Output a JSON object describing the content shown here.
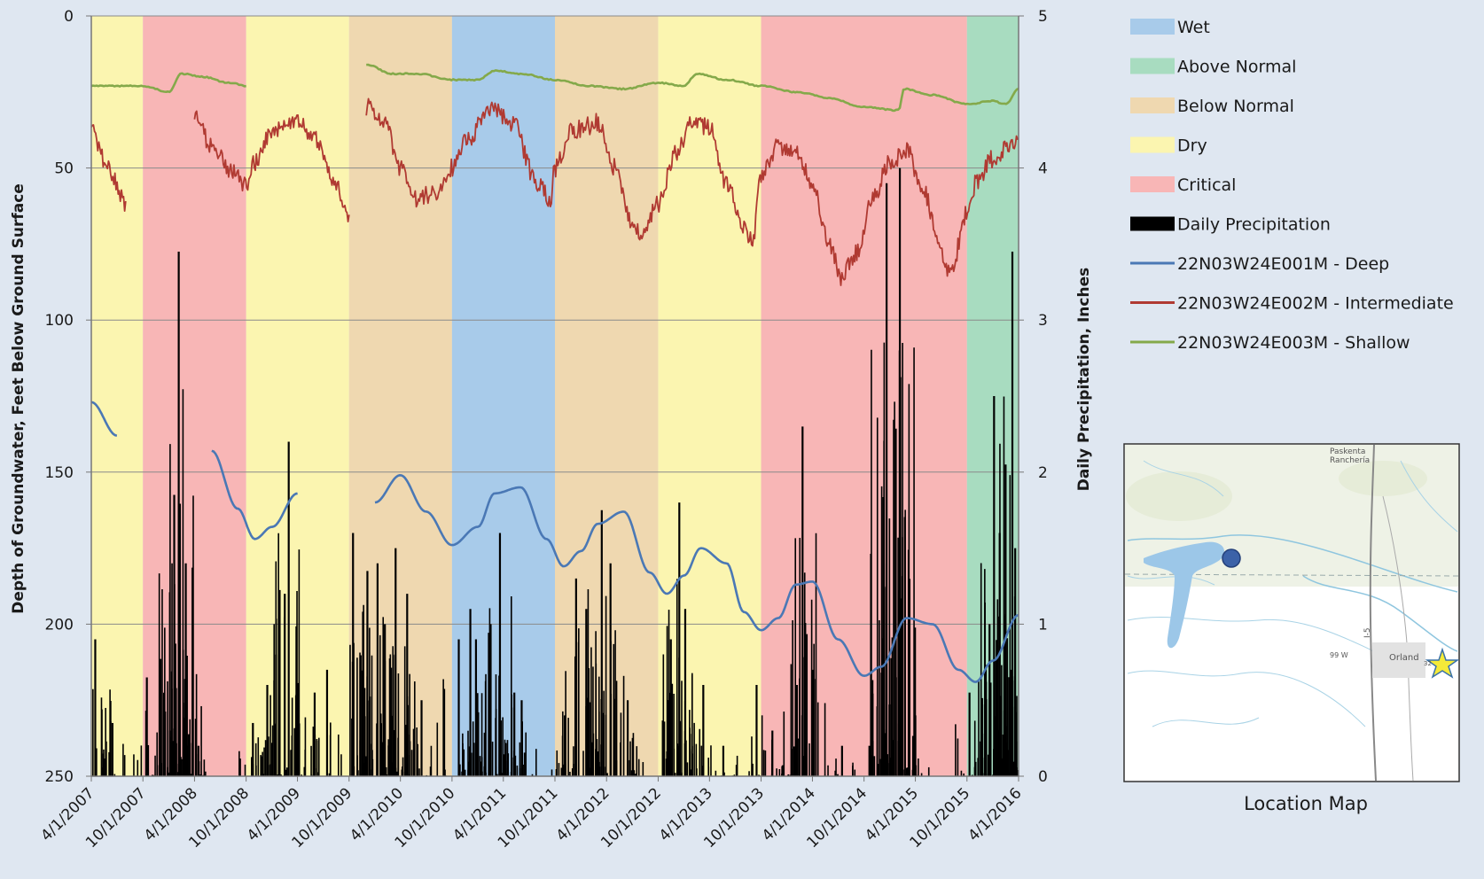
{
  "chart_data": {
    "type": "line",
    "x_axis": {
      "type": "date",
      "range": [
        "2007-04-01",
        "2016-04-01"
      ],
      "tick_labels": [
        "4/1/2007",
        "10/1/2007",
        "4/1/2008",
        "10/1/2008",
        "4/1/2009",
        "10/1/2009",
        "4/1/2010",
        "10/1/2010",
        "4/1/2011",
        "10/1/2011",
        "4/1/2012",
        "10/1/2012",
        "4/1/2013",
        "10/1/2013",
        "4/1/2014",
        "10/1/2014",
        "4/1/2015",
        "10/1/2015",
        "4/1/2016"
      ],
      "tick_dates": [
        "2007-04-01",
        "2007-10-01",
        "2008-04-01",
        "2008-10-01",
        "2009-04-01",
        "2009-10-01",
        "2010-04-01",
        "2010-10-01",
        "2011-04-01",
        "2011-10-01",
        "2012-04-01",
        "2012-10-01",
        "2013-04-01",
        "2013-10-01",
        "2014-04-01",
        "2014-10-01",
        "2015-04-01",
        "2015-10-01",
        "2016-04-01"
      ]
    },
    "y_axis_left": {
      "label": "Depth of Groundwater, Feet Below Ground Surface",
      "range": [
        0,
        250
      ],
      "inverted": true,
      "ticks": [
        0,
        50,
        100,
        150,
        200,
        250
      ],
      "gridlines": true
    },
    "y_axis_right": {
      "label": "Daily Precipitation, Inches",
      "range": [
        0,
        5
      ],
      "ticks": [
        0,
        1,
        2,
        3,
        4,
        5
      ]
    },
    "water_year_types": [
      {
        "start": "2007-04-01",
        "end": "2007-10-01",
        "type": "Dry"
      },
      {
        "start": "2007-10-01",
        "end": "2008-10-01",
        "type": "Critical"
      },
      {
        "start": "2008-10-01",
        "end": "2009-10-01",
        "type": "Dry"
      },
      {
        "start": "2009-10-01",
        "end": "2010-10-01",
        "type": "Below Normal"
      },
      {
        "start": "2010-10-01",
        "end": "2011-10-01",
        "type": "Wet"
      },
      {
        "start": "2011-10-01",
        "end": "2012-10-01",
        "type": "Below Normal"
      },
      {
        "start": "2012-10-01",
        "end": "2013-10-01",
        "type": "Dry"
      },
      {
        "start": "2013-10-01",
        "end": "2015-10-01",
        "type": "Critical"
      },
      {
        "start": "2015-10-01",
        "end": "2016-04-01",
        "type": "Above Normal"
      }
    ],
    "legend": {
      "placement": "right",
      "entries": [
        {
          "label": "Wet",
          "kind": "band",
          "color": "#a8cbea"
        },
        {
          "label": "Above Normal",
          "kind": "band",
          "color": "#a8dcc0"
        },
        {
          "label": "Below Normal",
          "kind": "band",
          "color": "#efd8b0"
        },
        {
          "label": "Dry",
          "kind": "band",
          "color": "#fbf5b0"
        },
        {
          "label": "Critical",
          "kind": "band",
          "color": "#f8b6b6"
        },
        {
          "label": "Daily Precipitation",
          "kind": "bar",
          "color": "#000000"
        },
        {
          "label": "22N03W24E001M - Deep",
          "kind": "line",
          "color": "#4a78b5"
        },
        {
          "label": "22N03W24E002M - Intermediate",
          "kind": "line",
          "color": "#b03a32"
        },
        {
          "label": "22N03W24E003M - Shallow",
          "kind": "line",
          "color": "#84a94a"
        }
      ]
    },
    "series": [
      {
        "name": "22N03W24E003M - Shallow",
        "axis": "left",
        "color": "#84a94a",
        "segments": [
          [
            [
              "2007-04-01",
              23
            ],
            [
              "2007-07-01",
              23
            ],
            [
              "2007-10-01",
              23
            ],
            [
              "2008-01-01",
              25
            ],
            [
              "2008-02-15",
              19
            ],
            [
              "2008-05-01",
              20
            ],
            [
              "2008-08-01",
              22
            ],
            [
              "2008-10-01",
              23
            ]
          ],
          [
            [
              "2009-12-01",
              16
            ],
            [
              "2010-03-01",
              19
            ],
            [
              "2010-06-01",
              19
            ],
            [
              "2010-10-01",
              21
            ],
            [
              "2011-01-01",
              21
            ],
            [
              "2011-03-01",
              18
            ],
            [
              "2011-06-01",
              19
            ],
            [
              "2011-10-01",
              21
            ],
            [
              "2012-02-01",
              23
            ],
            [
              "2012-06-01",
              24
            ],
            [
              "2012-10-01",
              22
            ],
            [
              "2013-01-01",
              23
            ],
            [
              "2013-02-15",
              19
            ],
            [
              "2013-06-01",
              21
            ],
            [
              "2013-10-01",
              23
            ],
            [
              "2014-02-01",
              25
            ],
            [
              "2014-06-01",
              27
            ],
            [
              "2014-10-01",
              30
            ],
            [
              "2015-02-01",
              31
            ],
            [
              "2015-02-20",
              24
            ],
            [
              "2015-06-01",
              26
            ],
            [
              "2015-10-01",
              29
            ],
            [
              "2016-01-01",
              28
            ],
            [
              "2016-02-15",
              29
            ],
            [
              "2016-04-01",
              24
            ]
          ]
        ]
      },
      {
        "name": "22N03W24E002M - Intermediate",
        "axis": "left",
        "color": "#b03a32",
        "segments": [
          [
            [
              "2007-04-01",
              38
            ],
            [
              "2007-06-01",
              50
            ],
            [
              "2007-07-15",
              58
            ],
            [
              "2007-08-01",
              62
            ]
          ],
          [
            [
              "2008-04-01",
              33
            ],
            [
              "2008-06-01",
              43
            ],
            [
              "2008-08-01",
              50
            ],
            [
              "2008-10-01",
              55
            ],
            [
              "2008-11-01",
              48
            ],
            [
              "2009-01-01",
              38
            ],
            [
              "2009-04-01",
              34
            ],
            [
              "2009-06-01",
              40
            ],
            [
              "2009-08-01",
              53
            ],
            [
              "2009-10-01",
              65
            ]
          ],
          [
            [
              "2009-12-01",
              30
            ],
            [
              "2010-02-01",
              35
            ],
            [
              "2010-04-01",
              50
            ],
            [
              "2010-06-01",
              60
            ],
            [
              "2010-08-01",
              58
            ],
            [
              "2010-10-01",
              50
            ],
            [
              "2010-12-01",
              40
            ],
            [
              "2011-02-01",
              32
            ],
            [
              "2011-03-01",
              31
            ],
            [
              "2011-05-01",
              35
            ],
            [
              "2011-08-01",
              55
            ],
            [
              "2011-09-15",
              60
            ],
            [
              "2011-10-01",
              50
            ],
            [
              "2011-12-01",
              38
            ],
            [
              "2012-02-01",
              36
            ],
            [
              "2012-03-01",
              35
            ],
            [
              "2012-05-01",
              50
            ],
            [
              "2012-07-01",
              68
            ],
            [
              "2012-08-01",
              72
            ],
            [
              "2012-10-01",
              62
            ],
            [
              "2012-12-01",
              45
            ],
            [
              "2013-02-01",
              34
            ],
            [
              "2013-04-01",
              37
            ],
            [
              "2013-06-01",
              55
            ],
            [
              "2013-08-01",
              70
            ],
            [
              "2013-09-01",
              74
            ],
            [
              "2013-10-01",
              52
            ],
            [
              "2013-12-01",
              43
            ],
            [
              "2014-02-01",
              45
            ],
            [
              "2014-04-01",
              55
            ],
            [
              "2014-06-01",
              75
            ],
            [
              "2014-07-15",
              86
            ],
            [
              "2014-09-01",
              78
            ],
            [
              "2014-11-01",
              60
            ],
            [
              "2015-01-01",
              48
            ],
            [
              "2015-03-01",
              44
            ],
            [
              "2015-05-01",
              58
            ],
            [
              "2015-07-01",
              78
            ],
            [
              "2015-08-01",
              85
            ],
            [
              "2015-10-01",
              65
            ],
            [
              "2015-11-01",
              55
            ],
            [
              "2016-01-01",
              47
            ],
            [
              "2016-03-01",
              42
            ],
            [
              "2016-04-01",
              40
            ]
          ]
        ]
      },
      {
        "name": "22N03W24E001M - Deep",
        "axis": "left",
        "color": "#4a78b5",
        "segments": [
          [
            [
              "2007-04-01",
              127
            ],
            [
              "2007-07-01",
              138
            ]
          ],
          [
            [
              "2008-06-01",
              143
            ],
            [
              "2008-09-01",
              162
            ],
            [
              "2008-11-01",
              172
            ],
            [
              "2009-01-01",
              168
            ],
            [
              "2009-04-01",
              157
            ]
          ],
          [
            [
              "2010-01-01",
              160
            ],
            [
              "2010-04-01",
              151
            ],
            [
              "2010-07-01",
              163
            ],
            [
              "2010-10-01",
              174
            ],
            [
              "2011-01-01",
              168
            ],
            [
              "2011-03-01",
              157
            ],
            [
              "2011-06-01",
              155
            ],
            [
              "2011-09-01",
              172
            ],
            [
              "2011-11-01",
              181
            ],
            [
              "2012-01-01",
              176
            ],
            [
              "2012-03-01",
              167
            ],
            [
              "2012-06-01",
              163
            ],
            [
              "2012-09-01",
              183
            ],
            [
              "2012-11-01",
              190
            ],
            [
              "2013-01-01",
              184
            ],
            [
              "2013-03-01",
              175
            ],
            [
              "2013-06-01",
              180
            ],
            [
              "2013-08-01",
              196
            ],
            [
              "2013-10-01",
              202
            ],
            [
              "2013-12-01",
              198
            ],
            [
              "2014-02-01",
              187
            ],
            [
              "2014-04-01",
              186
            ],
            [
              "2014-07-01",
              205
            ],
            [
              "2014-10-01",
              217
            ],
            [
              "2014-12-01",
              214
            ],
            [
              "2015-03-01",
              198
            ],
            [
              "2015-06-01",
              200
            ],
            [
              "2015-09-01",
              215
            ],
            [
              "2015-11-01",
              219
            ],
            [
              "2016-01-01",
              212
            ],
            [
              "2016-04-01",
              197
            ]
          ]
        ]
      }
    ],
    "precipitation_peaks": [
      {
        "date": "2007-04-15",
        "value": 0.9
      },
      {
        "date": "2007-06-15",
        "value": 0.35
      },
      {
        "date": "2007-10-15",
        "value": 0.65
      },
      {
        "date": "2008-01-05",
        "value": 0.3
      },
      {
        "date": "2008-01-20",
        "value": 1.85
      },
      {
        "date": "2008-02-05",
        "value": 3.45
      },
      {
        "date": "2008-03-01",
        "value": 1.4
      },
      {
        "date": "2008-04-15",
        "value": 0.2
      },
      {
        "date": "2008-10-25",
        "value": 0.35
      },
      {
        "date": "2008-12-15",
        "value": 0.6
      },
      {
        "date": "2009-01-15",
        "value": 0.8
      },
      {
        "date": "2009-02-15",
        "value": 1.2
      },
      {
        "date": "2009-03-01",
        "value": 2.2
      },
      {
        "date": "2009-06-01",
        "value": 0.55
      },
      {
        "date": "2009-07-15",
        "value": 0.7
      },
      {
        "date": "2009-10-15",
        "value": 1.6
      },
      {
        "date": "2009-12-05",
        "value": 1.35
      },
      {
        "date": "2010-01-10",
        "value": 1.4
      },
      {
        "date": "2010-02-05",
        "value": 1.0
      },
      {
        "date": "2010-03-15",
        "value": 1.5
      },
      {
        "date": "2010-04-25",
        "value": 1.2
      },
      {
        "date": "2010-06-15",
        "value": 0.5
      },
      {
        "date": "2010-10-25",
        "value": 0.9
      },
      {
        "date": "2010-12-05",
        "value": 1.1
      },
      {
        "date": "2010-12-25",
        "value": 0.9
      },
      {
        "date": "2011-02-15",
        "value": 1.0
      },
      {
        "date": "2011-03-20",
        "value": 1.6
      },
      {
        "date": "2011-05-10",
        "value": 0.55
      },
      {
        "date": "2011-06-05",
        "value": 0.5
      },
      {
        "date": "2011-11-05",
        "value": 0.4
      },
      {
        "date": "2011-12-15",
        "value": 1.3
      },
      {
        "date": "2012-01-20",
        "value": 1.1
      },
      {
        "date": "2012-03-15",
        "value": 1.75
      },
      {
        "date": "2012-04-15",
        "value": 1.4
      },
      {
        "date": "2012-06-15",
        "value": 0.5
      },
      {
        "date": "2012-11-15",
        "value": 0.9
      },
      {
        "date": "2012-12-15",
        "value": 1.8
      },
      {
        "date": "2013-01-05",
        "value": 1.1
      },
      {
        "date": "2013-03-10",
        "value": 0.6
      },
      {
        "date": "2013-05-20",
        "value": 0.2
      },
      {
        "date": "2013-09-15",
        "value": 0.6
      },
      {
        "date": "2013-11-10",
        "value": 0.3
      },
      {
        "date": "2014-02-05",
        "value": 0.6
      },
      {
        "date": "2014-02-25",
        "value": 2.3
      },
      {
        "date": "2014-04-01",
        "value": 0.7
      },
      {
        "date": "2014-07-15",
        "value": 0.2
      },
      {
        "date": "2014-10-20",
        "value": 0.2
      },
      {
        "date": "2014-12-10",
        "value": 1.4
      },
      {
        "date": "2014-12-20",
        "value": 3.9
      },
      {
        "date": "2015-02-05",
        "value": 4.0
      },
      {
        "date": "2015-04-01",
        "value": 0.4
      },
      {
        "date": "2015-10-10",
        "value": 0.55
      },
      {
        "date": "2015-12-20",
        "value": 1.0
      },
      {
        "date": "2016-01-05",
        "value": 2.5
      },
      {
        "date": "2016-01-25",
        "value": 1.6
      },
      {
        "date": "2016-02-15",
        "value": 2.05
      },
      {
        "date": "2016-03-05",
        "value": 0.7
      },
      {
        "date": "2016-03-10",
        "value": 3.45
      },
      {
        "date": "2016-03-20",
        "value": 1.5
      }
    ]
  },
  "map": {
    "caption": "Location Map",
    "labels": [
      "Paskenta\nRanchería",
      "Orland",
      "32",
      "I-5",
      "99 W"
    ]
  }
}
